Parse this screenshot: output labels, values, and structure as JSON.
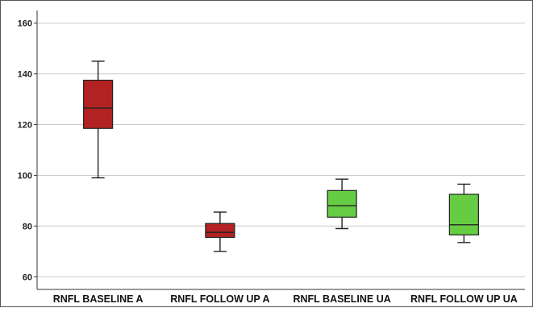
{
  "chart_data": {
    "type": "box",
    "title": "",
    "xlabel": "",
    "ylabel": "",
    "ylim": [
      55,
      165
    ],
    "yticks": [
      60,
      80,
      100,
      120,
      140,
      160
    ],
    "grid": "horizontal",
    "legend": "none",
    "categories": [
      "RNFL BASELINE A",
      "RNFL FOLLOW UP A",
      "RNFL BASELINE UA",
      "RNFL FOLLOW UP UA"
    ],
    "boxes": [
      {
        "category": "RNFL BASELINE A",
        "min": 99,
        "q1": 118.5,
        "median": 126.5,
        "q3": 137.5,
        "max": 145,
        "color": "#b22222"
      },
      {
        "category": "RNFL FOLLOW UP A",
        "min": 70,
        "q1": 75.5,
        "median": 77.5,
        "q3": 81,
        "max": 85.5,
        "color": "#b22222"
      },
      {
        "category": "RNFL BASELINE UA",
        "min": 79,
        "q1": 83.5,
        "median": 88,
        "q3": 94,
        "max": 98.5,
        "color": "#66cc44"
      },
      {
        "category": "RNFL FOLLOW UP UA",
        "min": 73.5,
        "q1": 76.5,
        "median": 80.5,
        "q3": 92.5,
        "max": 96.5,
        "color": "#66cc44"
      }
    ]
  }
}
